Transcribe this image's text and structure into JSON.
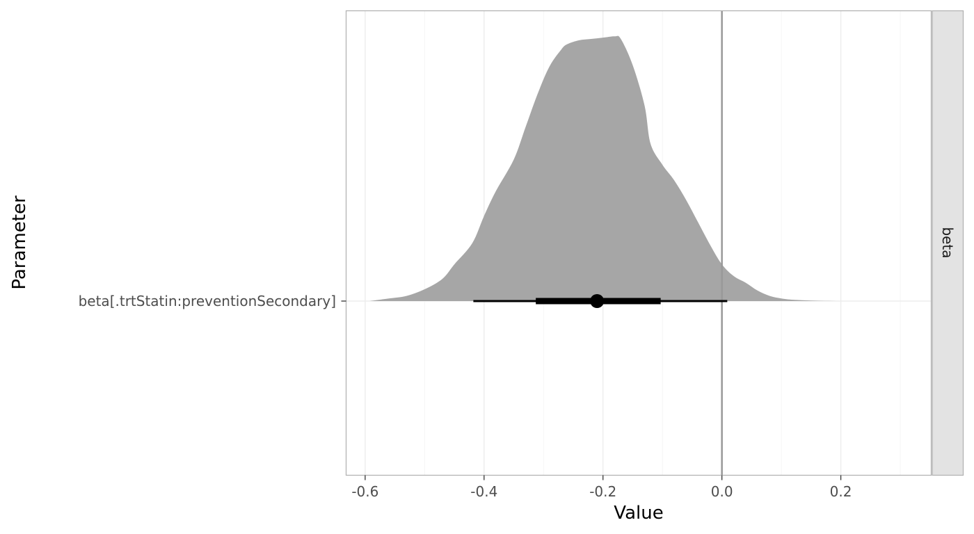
{
  "chart_data": {
    "type": "area",
    "title": "",
    "xlabel": "Value",
    "ylabel": "Parameter",
    "xlim": [
      -0.632,
      0.352
    ],
    "x_ticks": [
      -0.6,
      -0.4,
      -0.2,
      0.0,
      0.2
    ],
    "x_tick_labels": [
      "-0.6",
      "-0.4",
      "-0.2",
      "0.0",
      "0.2"
    ],
    "category": "beta[.trtStatin:preventionSecondary]",
    "facet_label": "beta",
    "reference_line_x": 0.0,
    "grid": true,
    "colors": {
      "density_fill": "#a6a6a6",
      "interval": "#000000",
      "reference_line": "#999999",
      "strip_fill": "#e3e3e3"
    },
    "density": {
      "x": [
        -0.593,
        -0.56,
        -0.53,
        -0.5,
        -0.47,
        -0.45,
        -0.42,
        -0.4,
        -0.38,
        -0.35,
        -0.33,
        -0.31,
        -0.29,
        -0.27,
        -0.26,
        -0.24,
        -0.22,
        -0.2,
        -0.18,
        -0.17,
        -0.15,
        -0.13,
        -0.12,
        -0.1,
        -0.08,
        -0.06,
        -0.04,
        -0.02,
        0.0,
        0.02,
        0.04,
        0.06,
        0.08,
        0.1,
        0.12,
        0.15,
        0.2,
        0.259
      ],
      "y": [
        0.0,
        0.01,
        0.02,
        0.045,
        0.085,
        0.14,
        0.22,
        0.325,
        0.42,
        0.54,
        0.665,
        0.79,
        0.895,
        0.96,
        0.98,
        0.995,
        1.0,
        1.005,
        1.01,
        1.0,
        0.9,
        0.745,
        0.6,
        0.52,
        0.46,
        0.385,
        0.3,
        0.215,
        0.14,
        0.095,
        0.07,
        0.04,
        0.02,
        0.01,
        0.005,
        0.002,
        0.0,
        0.0
      ]
    },
    "point_estimate": -0.21,
    "interval_inner": [
      -0.313,
      -0.103
    ],
    "interval_outer": [
      -0.418,
      0.009
    ]
  }
}
